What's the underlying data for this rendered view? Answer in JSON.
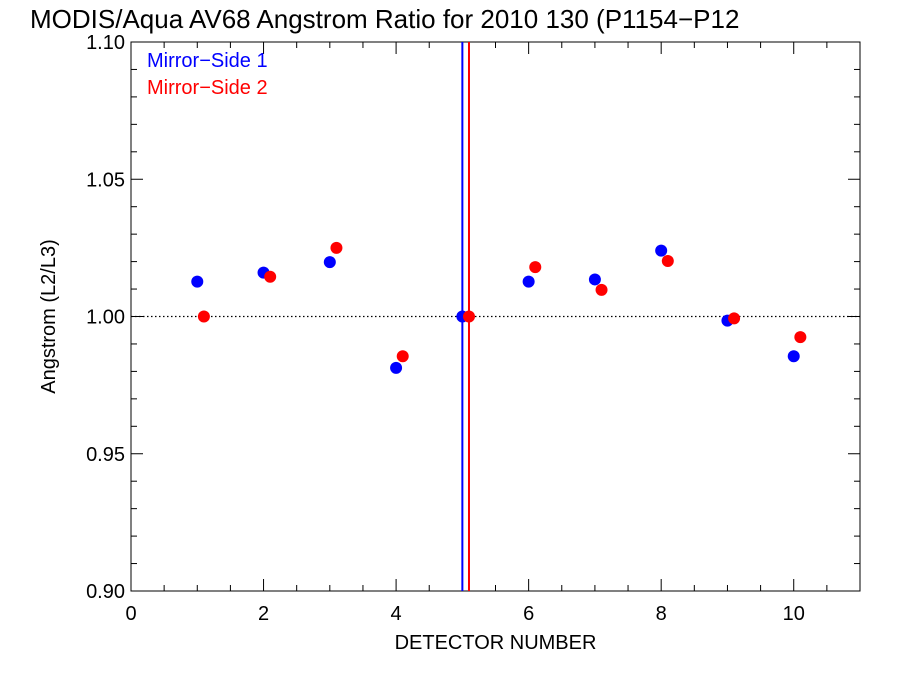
{
  "chart_data": {
    "type": "scatter",
    "title": "MODIS/Aqua AV68 Angstrom Ratio for 2010 130 (P1154−P12",
    "xlabel": "DETECTOR NUMBER",
    "ylabel": "Angstrom (L2/L3)",
    "xlim": [
      0,
      11
    ],
    "ylim": [
      0.9,
      1.1
    ],
    "x_ticks": [
      0,
      2,
      4,
      6,
      8,
      10
    ],
    "x_tick_labels": [
      "0",
      "2",
      "4",
      "6",
      "8",
      "10"
    ],
    "y_ticks": [
      0.9,
      0.95,
      1.0,
      1.05,
      1.1
    ],
    "y_tick_labels": [
      "0.90",
      "0.95",
      "1.00",
      "1.05",
      "1.10"
    ],
    "reference_line": 1.0,
    "legend_position": "top-left",
    "series": [
      {
        "name": "Mirror−Side 1",
        "color": "#0000ff",
        "x": [
          1,
          2,
          3,
          4,
          5,
          6,
          7,
          8,
          9,
          10
        ],
        "y": [
          1.0127,
          1.016,
          1.0198,
          0.9813,
          1.0,
          1.0127,
          1.0135,
          1.024,
          0.9985,
          0.9855
        ]
      },
      {
        "name": "Mirror−Side 2",
        "color": "#ff0000",
        "x": [
          1.1,
          2.1,
          3.1,
          4.1,
          5.1,
          6.1,
          7.1,
          8.1,
          9.1,
          10.1
        ],
        "y": [
          1.0,
          1.0145,
          1.025,
          0.9855,
          1.0,
          1.018,
          1.0097,
          1.0202,
          0.9993,
          0.9925
        ]
      }
    ],
    "vertical_lines": [
      {
        "x": 5.0,
        "color": "#0000ff"
      },
      {
        "x": 5.1,
        "color": "#ff0000"
      }
    ]
  }
}
